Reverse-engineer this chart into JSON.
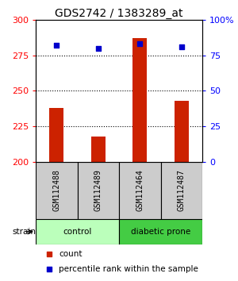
{
  "title": "GDS2742 / 1383289_at",
  "samples": [
    "GSM112488",
    "GSM112489",
    "GSM112464",
    "GSM112487"
  ],
  "counts": [
    238,
    218,
    287,
    243
  ],
  "percentiles": [
    82,
    80,
    83,
    81
  ],
  "ylim_left": [
    200,
    300
  ],
  "ylim_right": [
    0,
    100
  ],
  "yticks_left": [
    200,
    225,
    250,
    275,
    300
  ],
  "yticks_right": [
    0,
    25,
    50,
    75,
    100
  ],
  "ytick_labels_right": [
    "0",
    "25",
    "50",
    "75",
    "100%"
  ],
  "bar_color": "#cc2200",
  "dot_color": "#0000cc",
  "groups": [
    {
      "label": "control",
      "samples": [
        0,
        1
      ],
      "color": "#bbffbb"
    },
    {
      "label": "diabetic prone",
      "samples": [
        2,
        3
      ],
      "color": "#44cc44"
    }
  ],
  "strain_label": "strain",
  "legend_count_label": "count",
  "legend_percentile_label": "percentile rank within the sample",
  "sample_box_color": "#cccccc",
  "bar_width": 0.35,
  "title_fontsize": 10,
  "tick_fontsize": 8,
  "label_fontsize": 7
}
